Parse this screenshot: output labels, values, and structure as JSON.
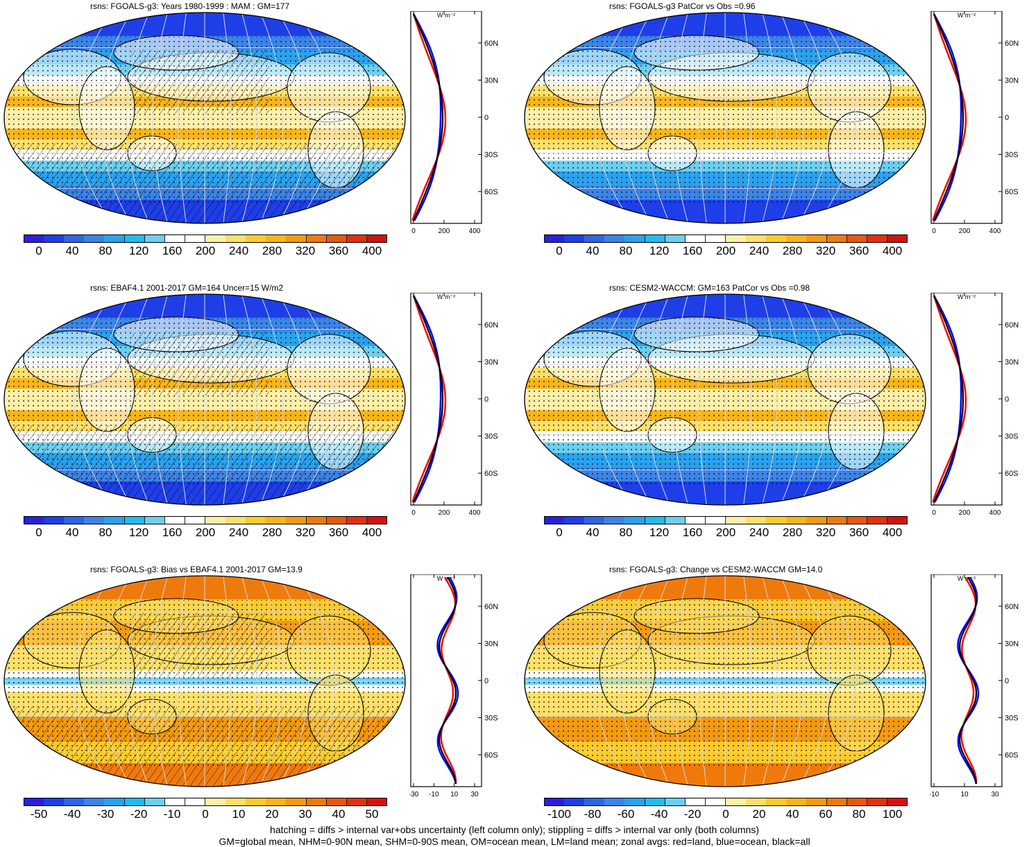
{
  "panels": [
    {
      "title": "rsns: FGOALS-g3: Years 1980-1999 : MAM : GM=177",
      "kind": "mean",
      "hatch": true,
      "colorbar_labels": [
        "0",
        "40",
        "80",
        "120",
        "160",
        "200",
        "240",
        "280",
        "320",
        "360",
        "400"
      ],
      "zonal_xticks": [
        "0",
        "200",
        "400"
      ],
      "zonal_ylabels": [
        "60N",
        "30N",
        "0",
        "30S",
        "60S"
      ],
      "zonal_unit": "W m⁻²"
    },
    {
      "title": "rsns: FGOALS-g3 PatCor vs Obs =0.96",
      "kind": "mean",
      "hatch": false,
      "colorbar_labels": [
        "0",
        "40",
        "80",
        "120",
        "160",
        "200",
        "240",
        "280",
        "320",
        "360",
        "400"
      ],
      "zonal_xticks": [
        "0",
        "200",
        "400"
      ],
      "zonal_ylabels": [
        "60N",
        "30N",
        "0",
        "30S",
        "60S"
      ],
      "zonal_unit": "W m⁻²"
    },
    {
      "title": "rsns: EBAF4.1 2001-2017 GM=164 Uncer=15 W/m2",
      "kind": "mean",
      "hatch": true,
      "colorbar_labels": [
        "0",
        "40",
        "80",
        "120",
        "160",
        "200",
        "240",
        "280",
        "320",
        "360",
        "400"
      ],
      "zonal_xticks": [
        "0",
        "200",
        "400"
      ],
      "zonal_ylabels": [
        "60N",
        "30N",
        "0",
        "30S",
        "60S"
      ],
      "zonal_unit": "W m⁻²"
    },
    {
      "title": "rsns: CESM2-WACCM: GM=163 PatCor vs Obs =0.98",
      "kind": "mean",
      "hatch": false,
      "colorbar_labels": [
        "0",
        "40",
        "80",
        "120",
        "160",
        "200",
        "240",
        "280",
        "320",
        "360",
        "400"
      ],
      "zonal_xticks": [
        "0",
        "200",
        "400"
      ],
      "zonal_ylabels": [
        "60N",
        "30N",
        "0",
        "30S",
        "60S"
      ],
      "zonal_unit": "W m⁻²"
    },
    {
      "title": "rsns: FGOALS-g3: Bias vs EBAF4.1 2001-2017 GM=13.9",
      "kind": "diff",
      "hatch": true,
      "colorbar_labels": [
        "-50",
        "-40",
        "-30",
        "-20",
        "-10",
        "0",
        "10",
        "20",
        "30",
        "40",
        "50"
      ],
      "zonal_xticks": [
        "-30",
        "-10",
        "10",
        "30"
      ],
      "zonal_ylabels": [
        "60N",
        "30N",
        "0",
        "30S",
        "60S"
      ],
      "zonal_unit": "W m⁻²"
    },
    {
      "title": "rsns: FGOALS-g3: Change vs CESM2-WACCM GM=14.0",
      "kind": "diff",
      "hatch": false,
      "colorbar_labels": [
        "-100",
        "-80",
        "-60",
        "-40",
        "-20",
        "0",
        "20",
        "40",
        "60",
        "80",
        "100"
      ],
      "zonal_xticks": [
        "-10",
        "10",
        "30"
      ],
      "zonal_ylabels": [
        "60N",
        "30N",
        "0",
        "30S",
        "60S"
      ],
      "zonal_unit": "W m⁻²"
    }
  ],
  "colors": {
    "mean_scale": [
      "#2a1fe0",
      "#1e3ee8",
      "#2f64e6",
      "#3b84e8",
      "#2aa2ee",
      "#22bcee",
      "#6ccff0",
      "#ffffff",
      "#ffffff",
      "#fff0a8",
      "#fde06a",
      "#fbcb2e",
      "#f7b51a",
      "#f39a10",
      "#ef7a0c",
      "#ea560c",
      "#e4300e",
      "#d5100f"
    ],
    "diff_scale": [
      "#2a1fe0",
      "#1e3ee8",
      "#2f64e6",
      "#3b84e8",
      "#2aa2ee",
      "#22bcee",
      "#6ccff0",
      "#ffffff",
      "#ffffff",
      "#fff0a8",
      "#fde06a",
      "#fbcb2e",
      "#f7b51a",
      "#f39a10",
      "#ef7a0c",
      "#ea560c",
      "#e4300e",
      "#d5100f"
    ],
    "zonal_land": "#ff0000",
    "zonal_ocean": "#0000ff",
    "zonal_all": "#000000"
  },
  "footer": {
    "line1": "hatching = diffs > internal var+obs uncertainty (left column only); stippling = diffs > internal var only (both columns)",
    "line2": "GM=global mean, NHM=0-90N mean, SHM=0-90S mean, OM=ocean mean, LM=land mean; zonal avgs: red=land, blue=ocean, black=all"
  }
}
